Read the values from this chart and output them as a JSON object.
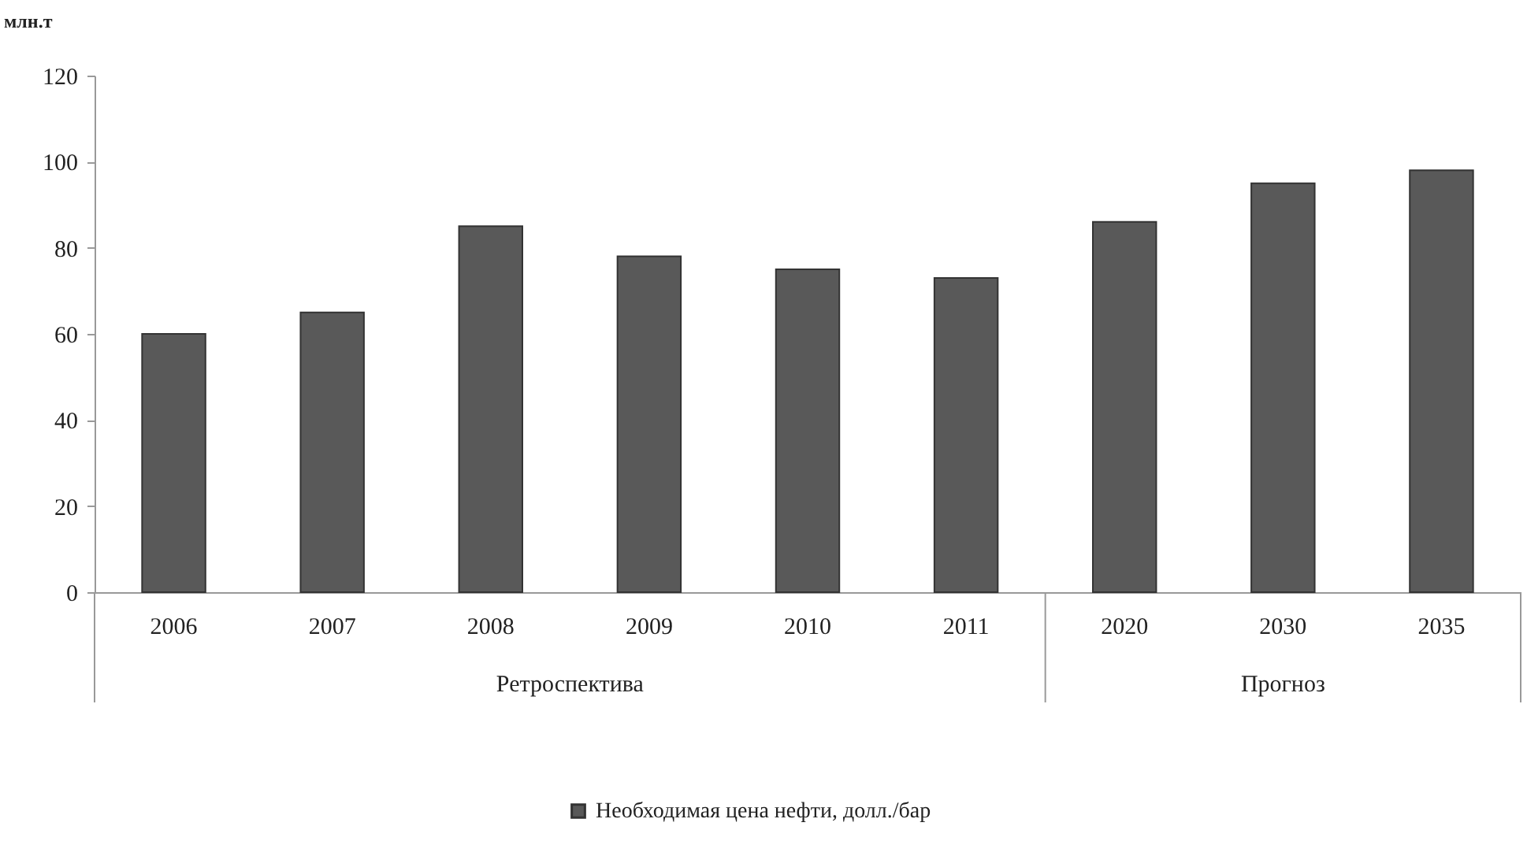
{
  "chart_data": {
    "type": "bar",
    "ylabel": "млн.т",
    "categories": [
      "2006",
      "2007",
      "2008",
      "2009",
      "2010",
      "2011",
      "2020",
      "2030",
      "2035"
    ],
    "series": [
      {
        "name": "Необходимая цена нефти, долл./бар",
        "color": "#595959",
        "values": [
          60,
          65,
          85,
          78,
          75,
          73,
          86,
          95,
          98
        ]
      }
    ],
    "ylim": [
      0,
      120
    ],
    "yticks": [
      0,
      20,
      40,
      60,
      80,
      100,
      120
    ],
    "grid": false,
    "legend": "bottom",
    "annotations": [
      "Ретроспектива",
      "Прогноз"
    ]
  }
}
